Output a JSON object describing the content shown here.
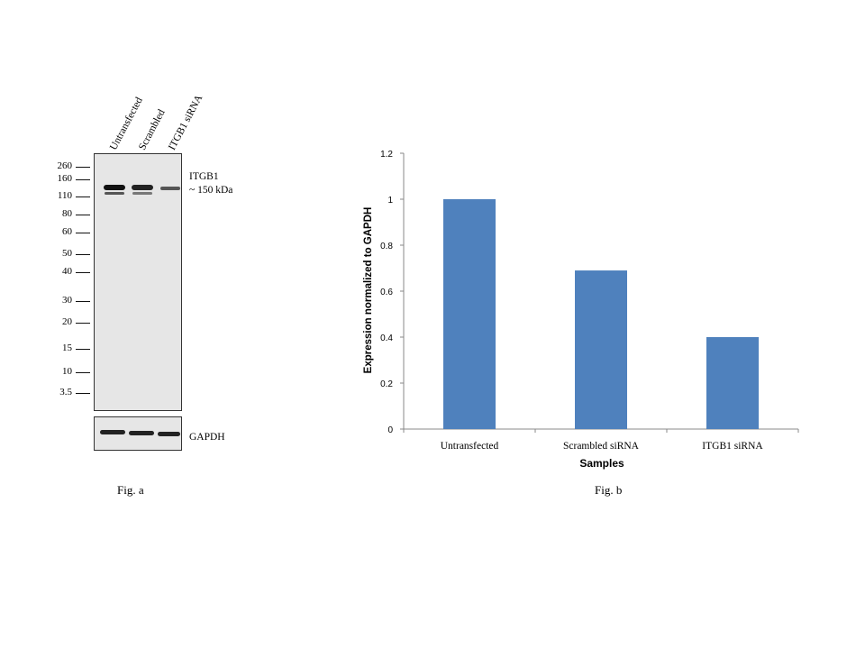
{
  "fig_a": {
    "caption": "Fig. a",
    "lanes": [
      "Untransfected",
      "Scrambled",
      "ITGB1 siRNA"
    ],
    "markers": [
      "260",
      "160",
      "110",
      "80",
      "60",
      "50",
      "40",
      "30",
      "20",
      "15",
      "10",
      "3.5"
    ],
    "target_label": "ITGB1",
    "target_size": "~ 150 kDa",
    "loading_control": "GAPDH"
  },
  "fig_b": {
    "caption": "Fig. b"
  },
  "chart_data": {
    "type": "bar",
    "categories": [
      "Untransfected",
      "Scrambled siRNA",
      "ITGB1 siRNA"
    ],
    "values": [
      1.0,
      0.69,
      0.4
    ],
    "ylabel": "Expression normalized to GAPDH",
    "xlabel": "Samples",
    "ylim": [
      0,
      1.2
    ],
    "yticks": [
      "0",
      "0.2",
      "0.4",
      "0.6",
      "0.8",
      "1",
      "1.2"
    ],
    "bar_color": "#4f81bd",
    "grid": false,
    "legend": "none"
  }
}
